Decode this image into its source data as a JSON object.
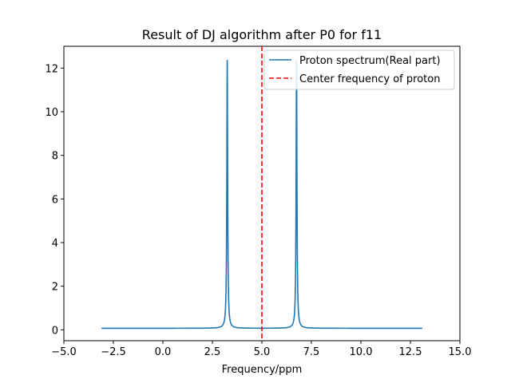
{
  "chart_data": {
    "type": "line",
    "title": "Result of DJ algorithm after P0 for f11",
    "xlabel": "Frequency/ppm",
    "ylabel": "",
    "xlim": [
      -5,
      15
    ],
    "ylim": [
      -0.5,
      13
    ],
    "xticks": [
      -5.0,
      -2.5,
      0.0,
      2.5,
      5.0,
      7.5,
      10.0,
      12.5,
      15.0
    ],
    "xtick_labels": [
      "−5.0",
      "−2.5",
      "0.0",
      "2.5",
      "5.0",
      "7.5",
      "10.0",
      "12.5",
      "15.0"
    ],
    "yticks": [
      0,
      2,
      4,
      6,
      8,
      10,
      12
    ],
    "ytick_labels": [
      "0",
      "2",
      "4",
      "6",
      "8",
      "10",
      "12"
    ],
    "grid": false,
    "legend_position": "upper right",
    "series": [
      {
        "name": "Proton spectrum(Real part)",
        "color": "#1f77b4",
        "style": "solid",
        "x_range": [
          -3.1,
          13.1
        ],
        "baseline": 0.07,
        "peaks": [
          {
            "center": 3.25,
            "height": 12.4
          },
          {
            "center": 6.75,
            "height": 12.4
          }
        ]
      },
      {
        "name": "Center frequency of proton",
        "color": "#ff0000",
        "style": "dashed",
        "x": 5.0
      }
    ]
  }
}
